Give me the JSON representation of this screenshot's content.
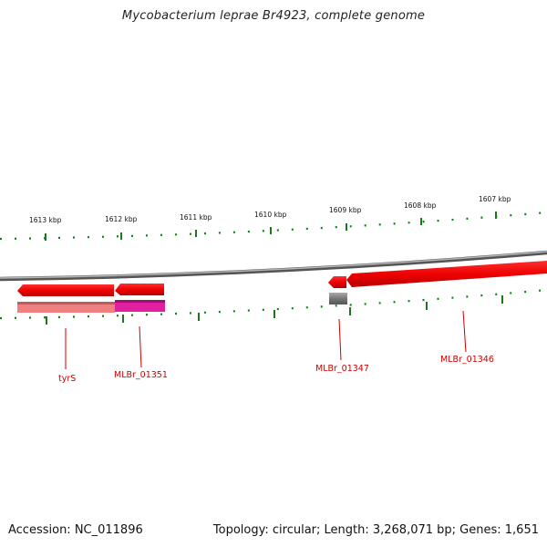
{
  "title": "Mycobacterium leprae Br4923, complete genome",
  "scale_labels": [
    "1613 kbp",
    "1612 kbp",
    "1611 kbp",
    "1610 kbp",
    "1609 kbp",
    "1608 kbp",
    "1607 kbp"
  ],
  "genes": [
    {
      "label": "tyrS",
      "strand": "minus"
    },
    {
      "label": "MLBr_01351",
      "strand": "minus"
    },
    {
      "label": "MLBr_01347",
      "strand": "minus"
    },
    {
      "label": "MLBr_01346",
      "strand": "minus"
    }
  ],
  "colors": {
    "backbone": "#888888",
    "gene": "#e00000",
    "tick": "#1a7a1a",
    "label": "#cc0000",
    "cds_pink": "#f08080",
    "cds_magenta": "#e020a0",
    "cds_gray": "#777777"
  },
  "footer": {
    "accession": "Accession: NC_011896",
    "summary": "Topology: circular; Length: 3,268,071 bp; Genes: 1,651"
  }
}
